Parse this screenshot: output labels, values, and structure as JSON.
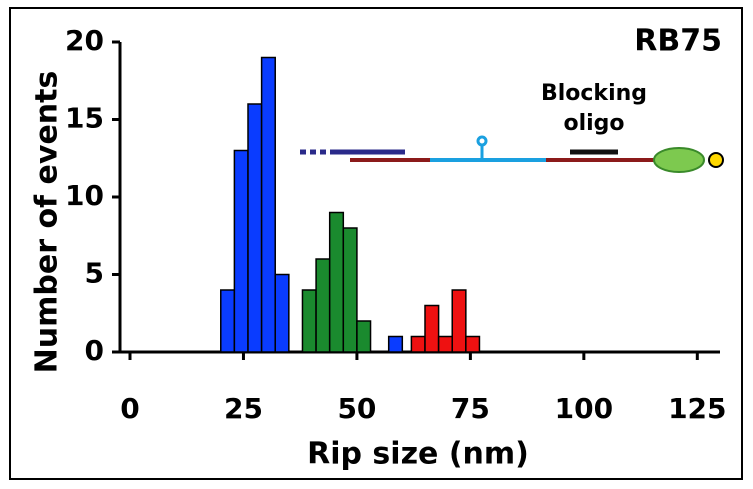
{
  "chart_data": {
    "type": "histogram",
    "x_label": "Rip size (nm)",
    "y_label": "Number of events",
    "annotations": [
      "RB75",
      "Blocking",
      "oligo"
    ],
    "xlim": [
      0,
      130
    ],
    "ylim": [
      0,
      20
    ],
    "xticks": [
      0,
      25,
      50,
      75,
      100,
      125
    ],
    "yticks": [
      0,
      5,
      10,
      15,
      20
    ],
    "series": [
      {
        "color": "#0a3cff",
        "bins": [
          20,
          23,
          26,
          29,
          32,
          35
        ],
        "values": [
          4,
          13,
          16,
          19,
          5
        ]
      },
      {
        "color": "#1a8a2e",
        "bins": [
          38,
          41,
          44,
          47,
          50,
          53
        ],
        "values": [
          4,
          6,
          9,
          8,
          2
        ]
      },
      {
        "color": "#0a3cff",
        "bins": [
          57,
          60
        ],
        "values": [
          1
        ]
      },
      {
        "color": "#ee1111",
        "bins": [
          62,
          65,
          68,
          71,
          74,
          77
        ],
        "values": [
          1,
          3,
          1,
          4,
          1
        ]
      }
    ]
  }
}
